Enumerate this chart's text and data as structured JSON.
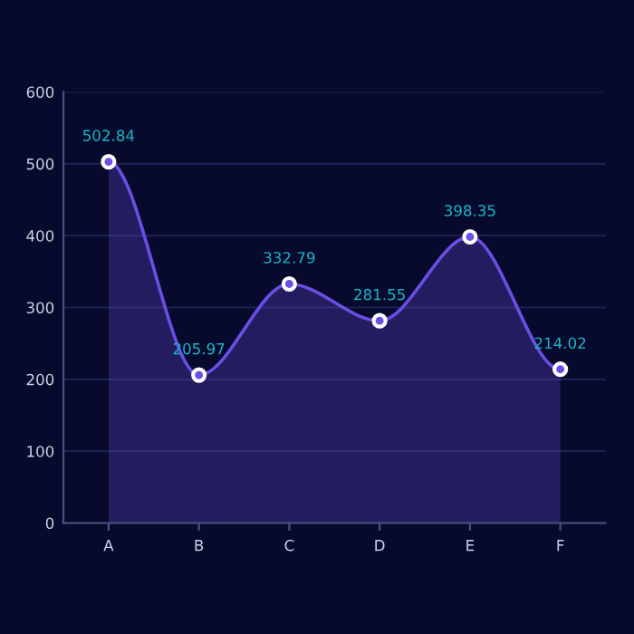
{
  "chart_data": {
    "type": "area",
    "categories": [
      "A",
      "B",
      "C",
      "D",
      "E",
      "F"
    ],
    "series": [
      {
        "color": "#6a4ee6",
        "values": [
          502.84,
          205.97,
          332.79,
          281.55,
          398.35,
          214.02
        ]
      }
    ],
    "ylim": [
      0,
      600
    ],
    "yticks": [
      0,
      100,
      200,
      300,
      400,
      500,
      600
    ],
    "grid": "y",
    "marker": "circle",
    "line_style": "solid",
    "data_labels": true
  }
}
